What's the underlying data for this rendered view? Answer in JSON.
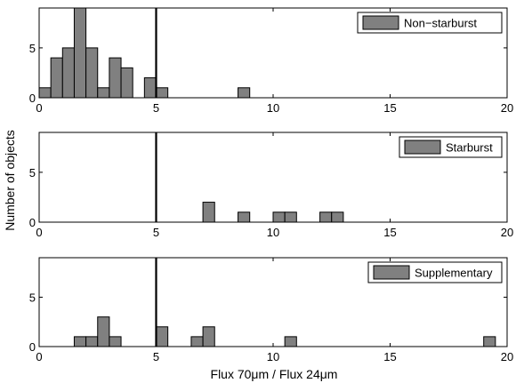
{
  "figure": {
    "ylabel": "Number of objects",
    "xlabel": "Flux 70μm / Flux 24μm"
  },
  "colors": {
    "bar_fill": "#808080",
    "bar_stroke": "#000000",
    "axis": "#000000",
    "threshold_line": "#000000"
  },
  "chart_data": [
    {
      "type": "bar",
      "legend": "Non−starburst",
      "legend_position": "top-right",
      "bin_width": 0.5,
      "bin_starts": [
        0,
        0.5,
        1,
        1.5,
        2,
        2.5,
        3,
        3.5,
        4.5,
        5,
        8.5
      ],
      "values": [
        1,
        4,
        5,
        9,
        5,
        1,
        4,
        3,
        2,
        1,
        1
      ],
      "xlim": [
        0,
        20
      ],
      "ylim": [
        0,
        9
      ],
      "xticks": [
        "0",
        "5",
        "10",
        "15",
        "20"
      ],
      "yticks": [
        "0",
        "5"
      ],
      "threshold_x": 5,
      "grid": false
    },
    {
      "type": "bar",
      "legend": "Starburst",
      "legend_position": "top-right",
      "bin_width": 0.5,
      "bin_starts": [
        7,
        8.5,
        10,
        10.5,
        12,
        12.5
      ],
      "values": [
        2,
        1,
        1,
        1,
        1,
        1
      ],
      "xlim": [
        0,
        20
      ],
      "ylim": [
        0,
        9
      ],
      "xticks": [
        "0",
        "5",
        "10",
        "15",
        "20"
      ],
      "yticks": [
        "0",
        "5"
      ],
      "threshold_x": 5,
      "grid": false
    },
    {
      "type": "bar",
      "legend": "Supplementary",
      "legend_position": "top-right",
      "bin_width": 0.5,
      "bin_starts": [
        1.5,
        2,
        2.5,
        3,
        5,
        6.5,
        7,
        10.5,
        19
      ],
      "values": [
        1,
        1,
        3,
        1,
        2,
        1,
        2,
        1,
        1
      ],
      "xlim": [
        0,
        20
      ],
      "ylim": [
        0,
        9
      ],
      "xticks": [
        "0",
        "5",
        "10",
        "15",
        "20"
      ],
      "yticks": [
        "0",
        "5"
      ],
      "threshold_x": 5,
      "grid": false
    }
  ]
}
